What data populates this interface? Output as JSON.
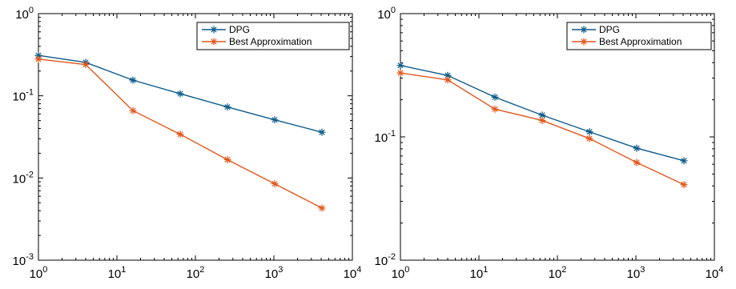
{
  "chart_data": [
    {
      "type": "line",
      "x_scale": "log",
      "y_scale": "log",
      "xlim": [
        1,
        10000
      ],
      "ylim": [
        0.001,
        1
      ],
      "x_ticks": [
        {
          "base": "10",
          "exp": "0",
          "value": 1
        },
        {
          "base": "10",
          "exp": "1",
          "value": 10
        },
        {
          "base": "10",
          "exp": "2",
          "value": 100
        },
        {
          "base": "10",
          "exp": "3",
          "value": 1000
        },
        {
          "base": "10",
          "exp": "4",
          "value": 10000
        }
      ],
      "y_ticks": [
        {
          "base": "10",
          "exp": "-3",
          "value": 0.001
        },
        {
          "base": "10",
          "exp": "-2",
          "value": 0.01
        },
        {
          "base": "10",
          "exp": "-1",
          "value": 0.1
        },
        {
          "base": "10",
          "exp": "0",
          "value": 1
        }
      ],
      "x": [
        1,
        4,
        16,
        64,
        256,
        1024,
        4096
      ],
      "series": [
        {
          "name": "DPG",
          "color": "#0c5c8a",
          "marker": "asterisk",
          "values": [
            0.31,
            0.255,
            0.155,
            0.106,
            0.073,
            0.051,
            0.036
          ]
        },
        {
          "name": "Best Approximation",
          "color": "#e2571c",
          "marker": "asterisk",
          "values": [
            0.28,
            0.24,
            0.066,
            0.034,
            0.0167,
            0.0085,
            0.0043
          ]
        }
      ],
      "legend_position": "top-right",
      "grid": false
    },
    {
      "type": "line",
      "x_scale": "log",
      "y_scale": "log",
      "xlim": [
        1,
        10000
      ],
      "ylim": [
        0.01,
        1
      ],
      "x_ticks": [
        {
          "base": "10",
          "exp": "0",
          "value": 1
        },
        {
          "base": "10",
          "exp": "1",
          "value": 10
        },
        {
          "base": "10",
          "exp": "2",
          "value": 100
        },
        {
          "base": "10",
          "exp": "3",
          "value": 1000
        },
        {
          "base": "10",
          "exp": "4",
          "value": 10000
        }
      ],
      "y_ticks": [
        {
          "base": "10",
          "exp": "-2",
          "value": 0.01
        },
        {
          "base": "10",
          "exp": "-1",
          "value": 0.1
        },
        {
          "base": "10",
          "exp": "0",
          "value": 1
        }
      ],
      "x": [
        1,
        4,
        16,
        64,
        256,
        1024,
        4096
      ],
      "series": [
        {
          "name": "DPG",
          "color": "#0c5c8a",
          "marker": "asterisk",
          "values": [
            0.38,
            0.315,
            0.21,
            0.15,
            0.11,
            0.081,
            0.064
          ]
        },
        {
          "name": "Best Approximation",
          "color": "#e2571c",
          "marker": "asterisk",
          "values": [
            0.33,
            0.29,
            0.168,
            0.136,
            0.097,
            0.062,
            0.041
          ]
        }
      ],
      "legend_position": "top-right",
      "grid": false
    }
  ]
}
